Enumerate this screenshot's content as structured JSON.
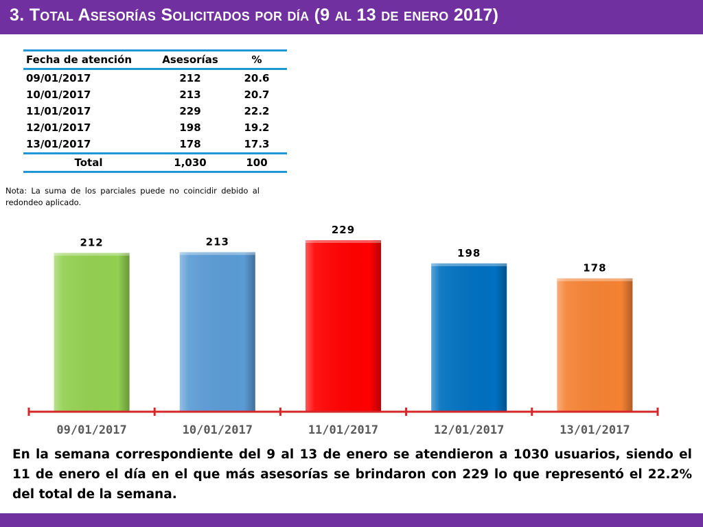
{
  "header": {
    "title": "3.  Total Asesorías Solicitados por día  (9 al 13 de enero  2017)"
  },
  "table": {
    "headers": [
      "Fecha de atención",
      "Asesorías",
      "%"
    ],
    "rows": [
      [
        "09/01/2017",
        "212",
        "20.6"
      ],
      [
        "10/01/2017",
        "213",
        "20.7"
      ],
      [
        "11/01/2017",
        "229",
        "22.2"
      ],
      [
        "12/01/2017",
        "198",
        "19.2"
      ],
      [
        "13/01/2017",
        "178",
        "17.3"
      ]
    ],
    "total": [
      "Total",
      "1,030",
      "100"
    ]
  },
  "note": "Nota: La suma de los parciales puede no coincidir debido al redondeo aplicado.",
  "summary": "En la semana correspondiente del 9 al 13 de enero se atendieron a 1030 usuarios, siendo el 11 de enero el día en el que más asesorías se brindaron con 229 lo que representó el 22.2% del total de la semana.",
  "colors": {
    "accent": "#7030a0",
    "table_rule": "#1f97d6",
    "axis": "#d62728"
  },
  "chart_data": {
    "type": "bar",
    "categories": [
      "09/01/2017",
      "10/01/2017",
      "11/01/2017",
      "12/01/2017",
      "13/01/2017"
    ],
    "values": [
      212,
      213,
      229,
      198,
      178
    ],
    "colors": [
      "#92d050",
      "#5b9bd5",
      "#ff0000",
      "#0070c0",
      "#f58233"
    ],
    "title": "",
    "xlabel": "",
    "ylabel": "",
    "ylim": [
      0,
      240
    ],
    "grid": false,
    "legend": "none",
    "data_labels": true
  }
}
